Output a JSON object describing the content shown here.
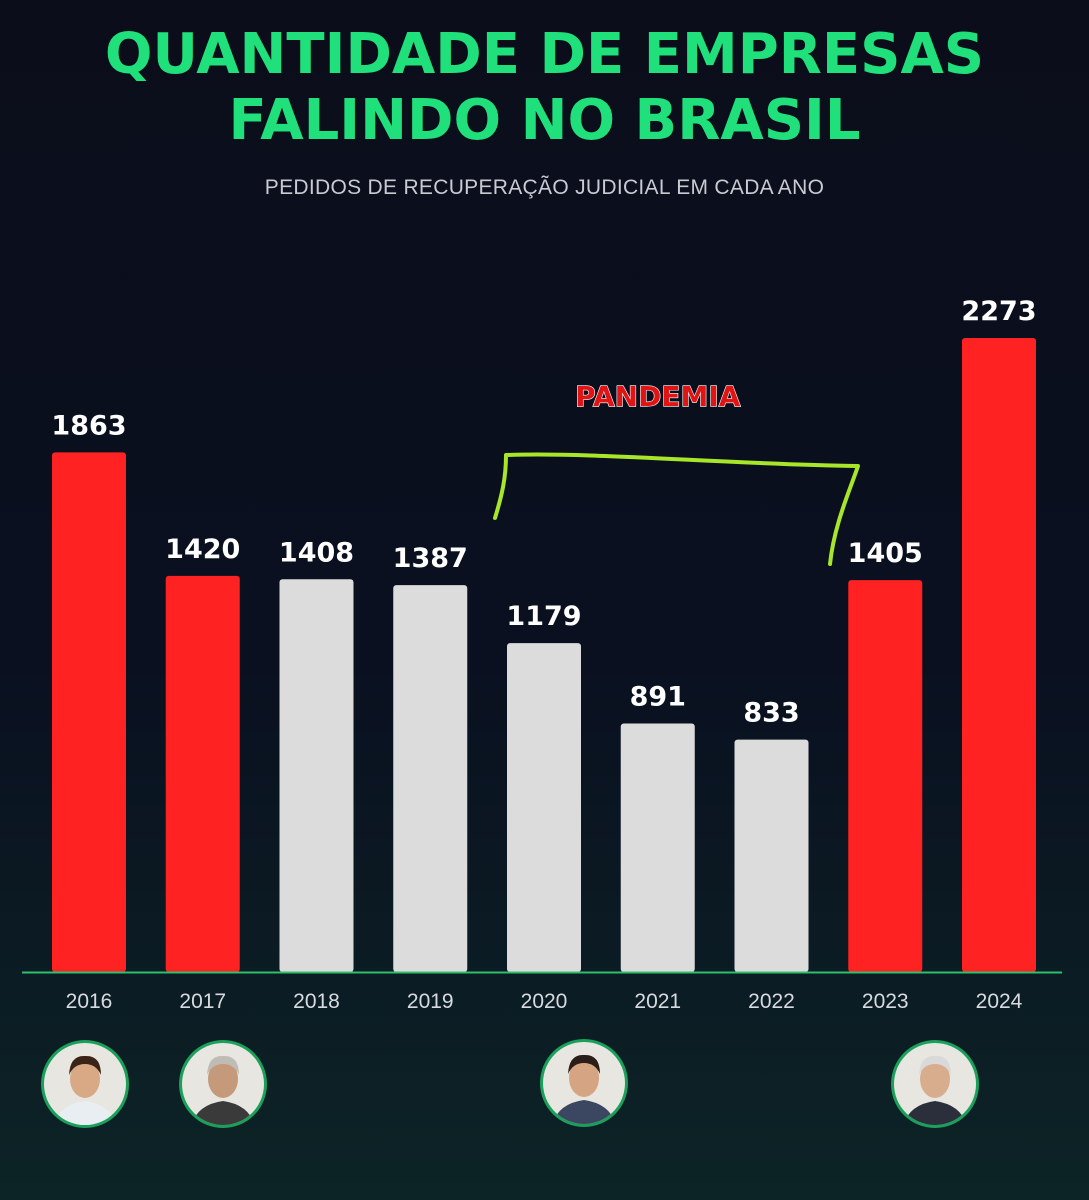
{
  "title_lines": [
    "QUANTIDADE DE EMPRESAS",
    "FALINDO NO BRASIL"
  ],
  "subtitle": "PEDIDOS DE RECUPERAÇÃO JUDICIAL EM CADA ANO",
  "colors": {
    "title": "#1fe07a",
    "red_bar": "#ff2222",
    "gray_bar": "#dcdcdc",
    "annotation_text": "#e01414",
    "bracket": "#a8e62a",
    "baseline": "#2fbf6a"
  },
  "chart_data": {
    "type": "bar",
    "title": "QUANTIDADE DE EMPRESAS FALINDO NO BRASIL",
    "subtitle": "PEDIDOS DE RECUPERAÇÃO JUDICIAL EM CADA ANO",
    "categories": [
      "2016",
      "2017",
      "2018",
      "2019",
      "2020",
      "2021",
      "2022",
      "2023",
      "2024"
    ],
    "values": [
      1863,
      1420,
      1408,
      1387,
      1179,
      891,
      833,
      1405,
      2273
    ],
    "bar_colors": [
      "red",
      "red",
      "gray",
      "gray",
      "gray",
      "gray",
      "gray",
      "red",
      "red"
    ],
    "data_labels": [
      "1863",
      "1420",
      "1408",
      "1387",
      "1179",
      "891",
      "833",
      "1405",
      "2273"
    ],
    "ylim": [
      0,
      2273
    ],
    "grid": false,
    "annotation": {
      "text": "PANDEMIA",
      "span": [
        "2020",
        "2022"
      ]
    },
    "xlabel": "",
    "ylabel": ""
  },
  "portraits": [
    {
      "under": "2016",
      "icon": "person-portrait-icon"
    },
    {
      "under": "2017",
      "icon": "person-portrait-icon"
    },
    {
      "under": "2020",
      "icon": "person-portrait-icon"
    },
    {
      "under": "2023",
      "icon": "person-portrait-icon"
    }
  ]
}
